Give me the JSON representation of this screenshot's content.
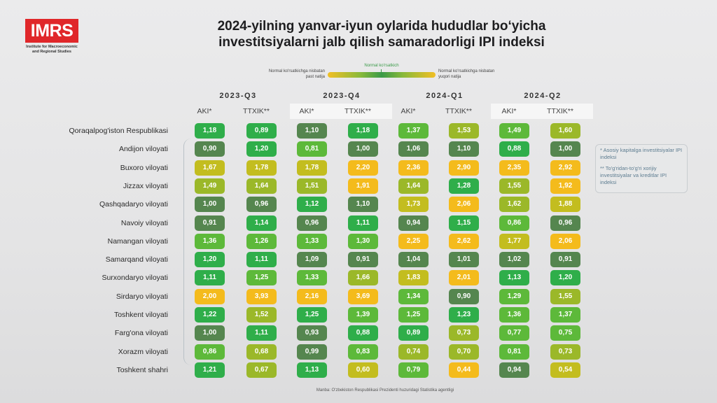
{
  "logo": {
    "text": "IMRS",
    "subtitle_line1": "Institute for Macroeconomic",
    "subtitle_line2": "and Regional Studies",
    "color": "#e0272a"
  },
  "title_line1": "2024-yilning yanvar-iyun oylarida hududlar bo‘yicha",
  "title_line2": "investitsiyalarni jalb qilish samaradorligi IPI indeksi",
  "legend": {
    "left": "Normal ko'rsatkichga nisbatan past natija",
    "middle": "Normal ko'rsatkich",
    "right": "Normal ko'rsatkichga nisbatan yuqori natija"
  },
  "notes": {
    "aki": "* Asosiy kapitalga investitsiyalar IPI indeksi",
    "ttxik": "** To'g'ridan-to'g'ri xorijiy investitsiyalar va kreditlar IPI indeksi"
  },
  "source": "Manba: O'zbekiston Respublikasi Prezidenti huzuridagi Statistika agentligi",
  "colors": {
    "dark_green": "#55864f",
    "green": "#2fae4a",
    "light_green": "#5db93a",
    "yellow_green": "#9bb829",
    "olive_yellow": "#c3bd1f",
    "orange_yellow": "#f4bb1c"
  },
  "chart_data": {
    "type": "table",
    "title": "2024-yilning yanvar-iyun oylarida hududlar bo‘yicha investitsiyalarni jalb qilish samaradorligi IPI indeksi",
    "quarters": [
      "2023-Q3",
      "2023-Q4",
      "2024-Q1",
      "2024-Q2"
    ],
    "sub_columns": [
      "AKI*",
      "TTXIK**"
    ],
    "regions": [
      "Qoraqalpog'iston Respublikasi",
      "Andijon viloyati",
      "Buxoro viloyati",
      "Jizzax viloyati",
      "Qashqadaryo viloyati",
      "Navoiy viloyati",
      "Namangan viloyati",
      "Samarqand viloyati",
      "Surxondaryo viloyati",
      "Sirdaryo viloyati",
      "Toshkent viloyati",
      "Farg'ona viloyati",
      "Xorazm viloyati",
      "Toshkent shahri"
    ],
    "values": [
      [
        "1,18",
        "0,89",
        "1,10",
        "1,18",
        "1,37",
        "1,53",
        "1,49",
        "1,60"
      ],
      [
        "0,90",
        "1,20",
        "0,81",
        "1,00",
        "1,06",
        "1,10",
        "0,88",
        "1,00"
      ],
      [
        "1,67",
        "1,78",
        "1,78",
        "2,20",
        "2,36",
        "2,90",
        "2,35",
        "2,92"
      ],
      [
        "1,49",
        "1,64",
        "1,51",
        "1,91",
        "1,64",
        "1,28",
        "1,55",
        "1,92"
      ],
      [
        "1,00",
        "0,96",
        "1,12",
        "1,10",
        "1,73",
        "2,06",
        "1,62",
        "1,88"
      ],
      [
        "0,91",
        "1,14",
        "0,96",
        "1,11",
        "0,94",
        "1,15",
        "0,86",
        "0,96"
      ],
      [
        "1,36",
        "1,26",
        "1,33",
        "1,30",
        "2,25",
        "2,62",
        "1,77",
        "2,06"
      ],
      [
        "1,20",
        "1,11",
        "1,09",
        "0,91",
        "1,04",
        "1,01",
        "1,02",
        "0,91"
      ],
      [
        "1,11",
        "1,25",
        "1,33",
        "1,66",
        "1,83",
        "2,01",
        "1,13",
        "1,20"
      ],
      [
        "2,00",
        "3,93",
        "2,16",
        "3,69",
        "1,34",
        "0,90",
        "1,29",
        "1,55"
      ],
      [
        "1,22",
        "1,52",
        "1,25",
        "1,39",
        "1,25",
        "1,23",
        "1,36",
        "1,37"
      ],
      [
        "1,00",
        "1,11",
        "0,93",
        "0,88",
        "0,89",
        "0,73",
        "0,77",
        "0,75"
      ],
      [
        "0,86",
        "0,68",
        "0,99",
        "0,83",
        "0,74",
        "0,70",
        "0,81",
        "0,73"
      ],
      [
        "1,21",
        "0,67",
        "1,13",
        "0,60",
        "0,79",
        "0,44",
        "0,94",
        "0,54"
      ]
    ],
    "color_classes": [
      [
        "green",
        "green",
        "dark_green",
        "green",
        "light_green",
        "yellow_green",
        "light_green",
        "yellow_green"
      ],
      [
        "dark_green",
        "green",
        "light_green",
        "dark_green",
        "dark_green",
        "dark_green",
        "green",
        "dark_green"
      ],
      [
        "olive_yellow",
        "olive_yellow",
        "olive_yellow",
        "orange_yellow",
        "orange_yellow",
        "orange_yellow",
        "orange_yellow",
        "orange_yellow"
      ],
      [
        "yellow_green",
        "yellow_green",
        "yellow_green",
        "orange_yellow",
        "yellow_green",
        "green",
        "yellow_green",
        "orange_yellow"
      ],
      [
        "dark_green",
        "dark_green",
        "green",
        "dark_green",
        "olive_yellow",
        "orange_yellow",
        "yellow_green",
        "olive_yellow"
      ],
      [
        "dark_green",
        "green",
        "dark_green",
        "green",
        "dark_green",
        "green",
        "light_green",
        "dark_green"
      ],
      [
        "light_green",
        "light_green",
        "light_green",
        "light_green",
        "orange_yellow",
        "orange_yellow",
        "olive_yellow",
        "orange_yellow"
      ],
      [
        "green",
        "green",
        "dark_green",
        "dark_green",
        "dark_green",
        "dark_green",
        "dark_green",
        "dark_green"
      ],
      [
        "green",
        "light_green",
        "light_green",
        "yellow_green",
        "olive_yellow",
        "orange_yellow",
        "green",
        "green"
      ],
      [
        "orange_yellow",
        "orange_yellow",
        "orange_yellow",
        "orange_yellow",
        "light_green",
        "dark_green",
        "light_green",
        "yellow_green"
      ],
      [
        "green",
        "yellow_green",
        "green",
        "light_green",
        "light_green",
        "green",
        "light_green",
        "light_green"
      ],
      [
        "dark_green",
        "green",
        "dark_green",
        "green",
        "green",
        "yellow_green",
        "light_green",
        "light_green"
      ],
      [
        "light_green",
        "yellow_green",
        "dark_green",
        "light_green",
        "yellow_green",
        "yellow_green",
        "light_green",
        "yellow_green"
      ],
      [
        "green",
        "yellow_green",
        "green",
        "olive_yellow",
        "light_green",
        "orange_yellow",
        "dark_green",
        "olive_yellow"
      ]
    ]
  }
}
